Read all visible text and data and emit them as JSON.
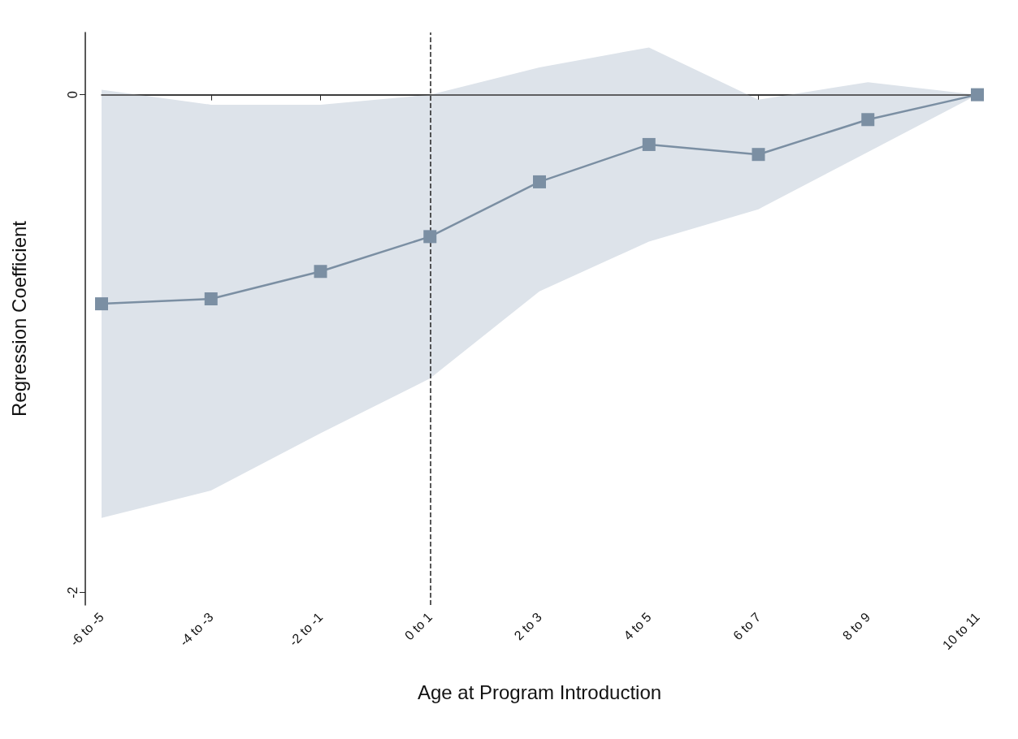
{
  "chart_data": {
    "type": "line",
    "xlabel": "Age at Program Introduction",
    "ylabel": "Regression Coefficient",
    "categories": [
      "-6 to -5",
      "-4 to -3",
      "-2 to -1",
      "0 to 1",
      "2 to 3",
      "4 to 5",
      "6 to 7",
      "8 to 9",
      "10 to 11"
    ],
    "series": [
      {
        "color": "#7b8fa3",
        "values": [
          -0.84,
          -0.82,
          -0.71,
          -0.57,
          -0.35,
          -0.2,
          -0.24,
          -0.1,
          0
        ],
        "lower": [
          -1.7,
          -1.59,
          -1.36,
          -1.14,
          -0.79,
          -0.59,
          -0.46,
          -0.23,
          0
        ],
        "upper": [
          0.02,
          -0.04,
          -0.04,
          0,
          0.11,
          0.19,
          -0.02,
          0.05,
          0
        ]
      }
    ],
    "ylim": [
      -2.05,
      0.25
    ],
    "yticks": [
      -2,
      0
    ],
    "grid": false,
    "marker": "square",
    "line_style": "solid",
    "ref_lines": [
      {
        "axis": "y",
        "value": 0,
        "color": "#333333",
        "line_style": "solid"
      },
      {
        "axis": "x",
        "value": "0 to 1",
        "color": "#222222",
        "line_style": "dashed"
      }
    ]
  }
}
